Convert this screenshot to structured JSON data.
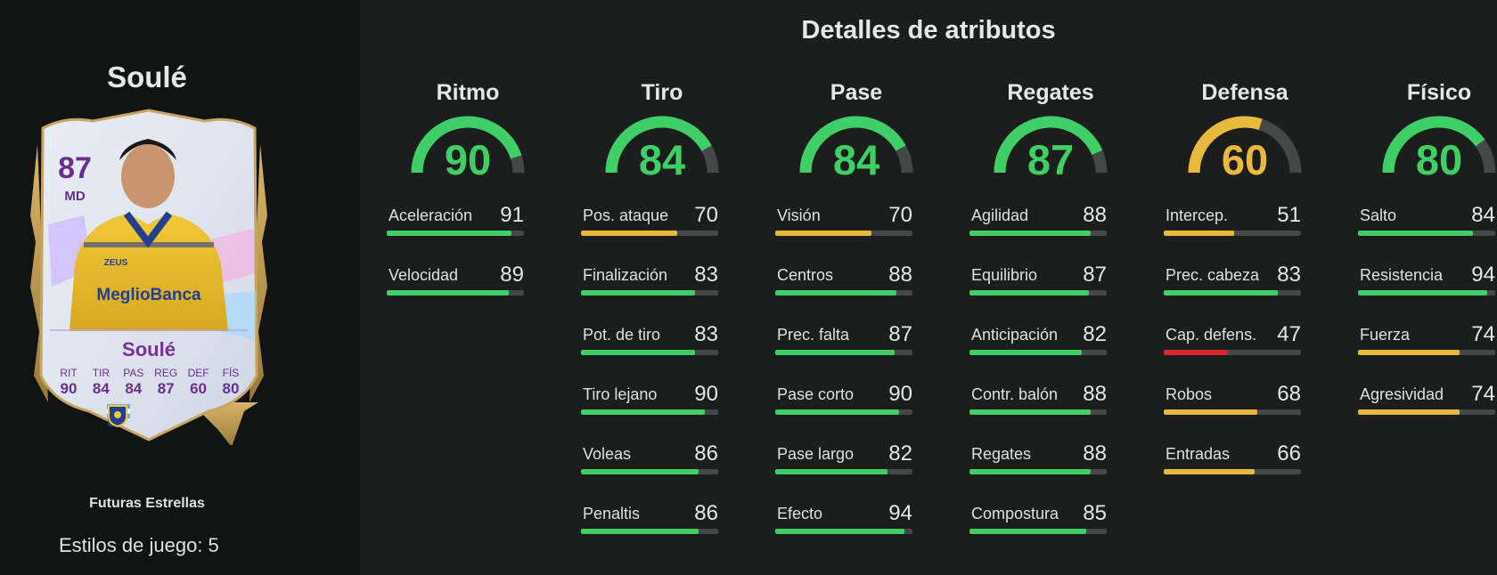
{
  "left": {
    "player_name": "Soulé",
    "card": {
      "rating": "87",
      "position": "MD",
      "name": "Soulé",
      "stats": [
        {
          "label": "RIT",
          "value": "90"
        },
        {
          "label": "TIR",
          "value": "84"
        },
        {
          "label": "PAS",
          "value": "84"
        },
        {
          "label": "REG",
          "value": "87"
        },
        {
          "label": "DEF",
          "value": "60"
        },
        {
          "label": "FÍS",
          "value": "80"
        }
      ],
      "sponsor_text": "MeglioBanca",
      "kit_brand": "ZEUS",
      "badges": [
        "argentina-flag-icon",
        "league-logo-icon",
        "club-crest-icon"
      ]
    },
    "card_type": "Futuras Estrellas",
    "playstyles_text": "Estilos de juego: 5"
  },
  "title": "Detalles de atributos",
  "colors": {
    "green": "#3fcf66",
    "yellow": "#e8b93d",
    "red": "#d8262f",
    "track": "#444846"
  },
  "categories": [
    {
      "name": "Ritmo",
      "value": 90,
      "display": "90",
      "attributes": [
        {
          "label": "Aceleración",
          "value": 91,
          "display": "91"
        },
        {
          "label": "Velocidad",
          "value": 89,
          "display": "89"
        }
      ]
    },
    {
      "name": "Tiro",
      "value": 84,
      "display": "84",
      "attributes": [
        {
          "label": "Pos. ataque",
          "value": 70,
          "display": "70"
        },
        {
          "label": "Finalización",
          "value": 83,
          "display": "83"
        },
        {
          "label": "Pot. de tiro",
          "value": 83,
          "display": "83"
        },
        {
          "label": "Tiro lejano",
          "value": 90,
          "display": "90"
        },
        {
          "label": "Voleas",
          "value": 86,
          "display": "86"
        },
        {
          "label": "Penaltis",
          "value": 86,
          "display": "86"
        }
      ]
    },
    {
      "name": "Pase",
      "value": 84,
      "display": "84",
      "attributes": [
        {
          "label": "Visión",
          "value": 70,
          "display": "70"
        },
        {
          "label": "Centros",
          "value": 88,
          "display": "88"
        },
        {
          "label": "Prec. falta",
          "value": 87,
          "display": "87"
        },
        {
          "label": "Pase corto",
          "value": 90,
          "display": "90"
        },
        {
          "label": "Pase largo",
          "value": 82,
          "display": "82"
        },
        {
          "label": "Efecto",
          "value": 94,
          "display": "94"
        }
      ]
    },
    {
      "name": "Regates",
      "value": 87,
      "display": "87",
      "attributes": [
        {
          "label": "Agilidad",
          "value": 88,
          "display": "88"
        },
        {
          "label": "Equilibrio",
          "value": 87,
          "display": "87"
        },
        {
          "label": "Anticipación",
          "value": 82,
          "display": "82"
        },
        {
          "label": "Contr. balón",
          "value": 88,
          "display": "88"
        },
        {
          "label": "Regates",
          "value": 88,
          "display": "88"
        },
        {
          "label": "Compostura",
          "value": 85,
          "display": "85"
        }
      ]
    },
    {
      "name": "Defensa",
      "value": 60,
      "display": "60",
      "attributes": [
        {
          "label": "Intercep.",
          "value": 51,
          "display": "51"
        },
        {
          "label": "Prec. cabeza",
          "value": 83,
          "display": "83"
        },
        {
          "label": "Cap. defens.",
          "value": 47,
          "display": "47"
        },
        {
          "label": "Robos",
          "value": 68,
          "display": "68"
        },
        {
          "label": "Entradas",
          "value": 66,
          "display": "66"
        }
      ]
    },
    {
      "name": "Físico",
      "value": 80,
      "display": "80",
      "attributes": [
        {
          "label": "Salto",
          "value": 84,
          "display": "84"
        },
        {
          "label": "Resistencia",
          "value": 94,
          "display": "94"
        },
        {
          "label": "Fuerza",
          "value": 74,
          "display": "74"
        },
        {
          "label": "Agresividad",
          "value": 74,
          "display": "74"
        }
      ]
    }
  ]
}
